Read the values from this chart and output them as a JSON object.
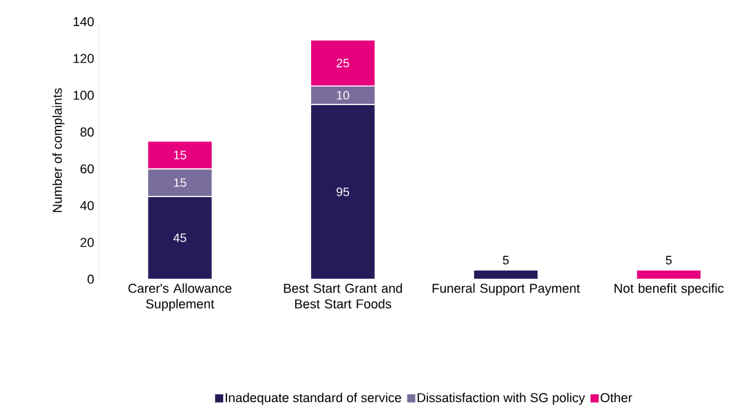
{
  "chart_data": {
    "type": "bar",
    "stacked": true,
    "ylabel": "Number of complaints",
    "categories": [
      "Carer's Allowance Supplement",
      "Best Start Grant and Best Start Foods",
      "Funeral Support Payment",
      "Not benefit specific"
    ],
    "series": [
      {
        "name": "Inadequate standard of service",
        "color": "#241c5a",
        "values": [
          45,
          95,
          5,
          null
        ]
      },
      {
        "name": "Dissatisfaction with SG policy",
        "color": "#786d9c",
        "values": [
          15,
          10,
          null,
          null
        ]
      },
      {
        "name": "Other",
        "color": "#e6007e",
        "values": [
          15,
          25,
          null,
          5
        ]
      }
    ],
    "ylim": [
      0,
      140
    ],
    "yticks": [
      0,
      20,
      40,
      60,
      80,
      100,
      120,
      140
    ],
    "data_labels": true,
    "legend": "bottom",
    "grid": false
  }
}
